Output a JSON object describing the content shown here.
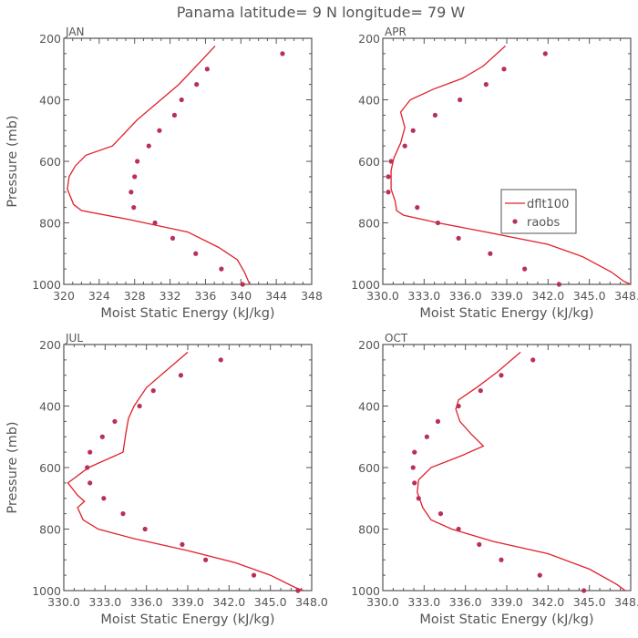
{
  "title": "Panama  latitude= 9 N longitude= 79 W",
  "colors": {
    "model": "#e0202a",
    "obs": "#b8305a",
    "axis": "#555555",
    "text": "#555555",
    "background": "#ffffff"
  },
  "legend": {
    "model_label": "dflt100",
    "obs_label": "raobs"
  },
  "chart_data": [
    {
      "type": "line",
      "panel": "JAN",
      "title": "JAN",
      "xlabel": "Moist Static Energy (kJ/kg)",
      "ylabel": "Pressure (mb)",
      "xlim": [
        320,
        348
      ],
      "ylim": [
        1000,
        200
      ],
      "xticks": [
        320,
        324,
        328,
        332,
        336,
        340,
        344,
        348
      ],
      "xtick_labels": [
        "320",
        "324",
        "328",
        "332",
        "336",
        "340",
        "344",
        "348"
      ],
      "yticks": [
        200,
        400,
        600,
        800,
        1000
      ],
      "ytick_labels": [
        "200",
        "400",
        "600",
        "800",
        "1000"
      ],
      "series": [
        {
          "name": "dflt100",
          "kind": "line",
          "x": [
            337.1,
            333.0,
            328.3,
            325.5,
            322.5,
            321.3,
            320.6,
            320.4,
            321.1,
            322.0,
            327.5,
            334.0,
            337.5,
            339.6,
            340.4,
            341.0
          ],
          "y": [
            225,
            350,
            465,
            550,
            580,
            615,
            650,
            690,
            740,
            760,
            790,
            830,
            880,
            920,
            960,
            1000
          ]
        },
        {
          "name": "raobs",
          "kind": "scatter",
          "x": [
            344.7,
            336.2,
            335.0,
            333.3,
            332.5,
            330.8,
            329.6,
            328.3,
            328.0,
            327.6,
            327.9,
            330.3,
            332.3,
            334.9,
            337.8,
            340.2
          ],
          "y": [
            250,
            300,
            350,
            400,
            450,
            500,
            550,
            600,
            650,
            700,
            750,
            800,
            850,
            900,
            950,
            1000
          ]
        }
      ]
    },
    {
      "type": "line",
      "panel": "APR",
      "title": "APR",
      "xlabel": "Moist Static Energy (kJ/kg)",
      "ylabel": "",
      "xlim": [
        330,
        348
      ],
      "ylim": [
        1000,
        200
      ],
      "xticks": [
        330,
        333,
        336,
        339,
        342,
        345,
        348
      ],
      "xtick_labels": [
        "330.0",
        "333.0",
        "336.0",
        "339.0",
        "342.0",
        "345.0",
        "348.0"
      ],
      "yticks": [
        200,
        400,
        600,
        800,
        1000
      ],
      "ytick_labels": [
        "200",
        "400",
        "600",
        "800",
        "1000"
      ],
      "series": [
        {
          "name": "dflt100",
          "kind": "line",
          "x": [
            338.9,
            337.3,
            335.8,
            333.7,
            332.0,
            331.3,
            331.6,
            331.3,
            330.8,
            330.6,
            330.6,
            330.9,
            331.0,
            331.5,
            334.0,
            337.5,
            342.0,
            344.5,
            346.6,
            347.5,
            348.0
          ],
          "y": [
            225,
            290,
            330,
            365,
            400,
            440,
            490,
            540,
            590,
            630,
            690,
            730,
            760,
            775,
            800,
            830,
            870,
            910,
            960,
            990,
            1000
          ]
        },
        {
          "name": "raobs",
          "kind": "scatter",
          "x": [
            341.8,
            338.8,
            337.5,
            335.6,
            333.8,
            332.2,
            331.6,
            330.6,
            330.4,
            330.4,
            332.5,
            334.0,
            335.5,
            337.8,
            340.3,
            342.8
          ],
          "y": [
            250,
            300,
            350,
            400,
            450,
            500,
            550,
            600,
            650,
            700,
            750,
            800,
            850,
            900,
            950,
            1000
          ]
        }
      ]
    },
    {
      "type": "line",
      "panel": "JUL",
      "title": "JUL",
      "xlabel": "Moist Static Energy (kJ/kg)",
      "ylabel": "Pressure (mb)",
      "xlim": [
        330,
        348
      ],
      "ylim": [
        1000,
        200
      ],
      "xticks": [
        330,
        333,
        336,
        339,
        342,
        345,
        348
      ],
      "xtick_labels": [
        "330.0",
        "333.0",
        "336.0",
        "339.0",
        "342.0",
        "345.0",
        "348.0"
      ],
      "yticks": [
        200,
        400,
        600,
        800,
        1000
      ],
      "ytick_labels": [
        "200",
        "400",
        "600",
        "800",
        "1000"
      ],
      "series": [
        {
          "name": "dflt100",
          "kind": "line",
          "x": [
            339.0,
            337.3,
            336.0,
            335.1,
            334.7,
            334.5,
            334.3,
            331.8,
            330.3,
            331.0,
            331.5,
            331.0,
            331.4,
            332.5,
            335.0,
            339.0,
            342.5,
            345.0,
            346.8,
            347.4
          ],
          "y": [
            225,
            290,
            340,
            400,
            440,
            490,
            550,
            600,
            650,
            690,
            710,
            730,
            770,
            800,
            830,
            870,
            910,
            950,
            990,
            1000
          ]
        },
        {
          "name": "raobs",
          "kind": "scatter",
          "x": [
            341.4,
            338.5,
            336.5,
            335.5,
            333.7,
            332.8,
            331.9,
            331.7,
            331.9,
            332.9,
            334.3,
            335.9,
            338.6,
            340.3,
            343.8,
            347.0
          ],
          "y": [
            250,
            300,
            350,
            400,
            450,
            500,
            550,
            600,
            650,
            700,
            750,
            800,
            850,
            900,
            950,
            1000
          ]
        }
      ]
    },
    {
      "type": "line",
      "panel": "OCT",
      "title": "OCT",
      "xlabel": "Moist Static Energy (kJ/kg)",
      "ylabel": "",
      "xlim": [
        330,
        348
      ],
      "ylim": [
        1000,
        200
      ],
      "xticks": [
        330,
        333,
        336,
        339,
        342,
        345,
        348
      ],
      "xtick_labels": [
        "330.0",
        "333.0",
        "336.0",
        "339.0",
        "342.0",
        "345.0",
        "348.0"
      ],
      "yticks": [
        200,
        400,
        600,
        800,
        1000
      ],
      "ytick_labels": [
        "200",
        "400",
        "600",
        "800",
        "1000"
      ],
      "series": [
        {
          "name": "dflt100",
          "kind": "line",
          "x": [
            340.0,
            338.3,
            336.8,
            335.5,
            335.3,
            335.6,
            336.4,
            337.3,
            335.8,
            333.5,
            332.6,
            332.5,
            332.9,
            333.5,
            335.0,
            338.0,
            342.0,
            345.0,
            347.0,
            347.6
          ],
          "y": [
            225,
            290,
            340,
            380,
            410,
            450,
            490,
            530,
            560,
            600,
            640,
            680,
            730,
            770,
            800,
            840,
            880,
            930,
            980,
            1000
          ]
        },
        {
          "name": "raobs",
          "kind": "scatter",
          "x": [
            340.9,
            338.6,
            337.1,
            335.5,
            334.0,
            333.2,
            332.3,
            332.2,
            332.3,
            332.6,
            334.2,
            335.5,
            337.0,
            338.6,
            341.4,
            344.6
          ],
          "y": [
            250,
            300,
            350,
            400,
            450,
            500,
            550,
            600,
            650,
            700,
            750,
            800,
            850,
            900,
            950,
            1000
          ]
        }
      ]
    }
  ]
}
